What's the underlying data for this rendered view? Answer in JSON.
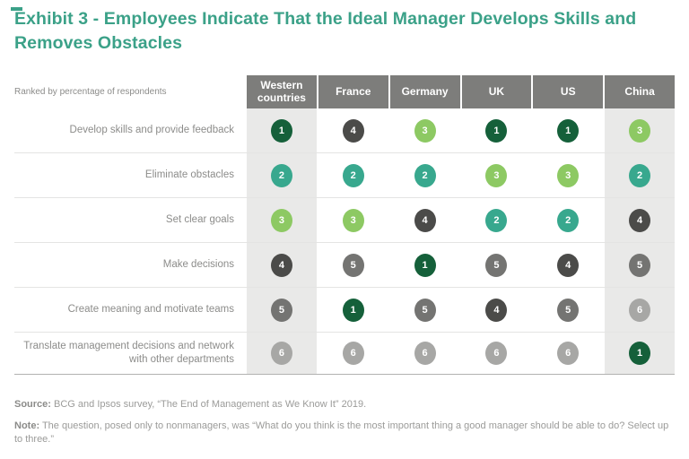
{
  "title": {
    "text": "Exhibit 3 - Employees Indicate That the Ideal Manager Develops Skills and Removes Obstacles",
    "color": "#3BA188"
  },
  "table": {
    "corner_label": "Ranked by percentage of respondents",
    "columns": [
      "Western countries",
      "France",
      "Germany",
      "UK",
      "US",
      "China"
    ],
    "shaded_columns": [
      0,
      5
    ],
    "rows": [
      {
        "label": "Develop skills and provide feedback",
        "ranks": [
          1,
          4,
          3,
          1,
          1,
          3
        ]
      },
      {
        "label": "Eliminate obstacles",
        "ranks": [
          2,
          2,
          2,
          3,
          3,
          2
        ]
      },
      {
        "label": "Set clear goals",
        "ranks": [
          3,
          3,
          4,
          2,
          2,
          4
        ]
      },
      {
        "label": "Make decisions",
        "ranks": [
          4,
          5,
          1,
          5,
          4,
          5
        ]
      },
      {
        "label": "Create meaning and motivate teams",
        "ranks": [
          5,
          1,
          5,
          4,
          5,
          6
        ]
      },
      {
        "label": "Translate management decisions and network with other departments",
        "ranks": [
          6,
          6,
          6,
          6,
          6,
          1
        ]
      }
    ],
    "rank_colors": {
      "1": "#15603A",
      "2": "#38A88E",
      "3": "#8DC963",
      "4": "#4B4B49",
      "5": "#747472",
      "6": "#A7A7A5"
    },
    "header_bg": "#7D7D7B",
    "shaded_column_bg": "#E9E9E8"
  },
  "footer": {
    "source_label": "Source:",
    "source_text": " BCG and Ipsos survey, “The End of Management as We Know It” 2019.",
    "note_label": "Note:",
    "note_text": " The question, posed only to nonmanagers, was “What do you think is the most important thing a good manager should be able to do? Select up to three.”"
  },
  "chart_data": {
    "type": "table",
    "title": "Exhibit 3 - Employees Indicate That the Ideal Manager Develops Skills and Removes Obstacles",
    "columns": [
      "Western countries",
      "France",
      "Germany",
      "UK",
      "US",
      "China"
    ],
    "rows": [
      "Develop skills and provide feedback",
      "Eliminate obstacles",
      "Set clear goals",
      "Make decisions",
      "Create meaning and motivate teams",
      "Translate management decisions and network with other departments"
    ],
    "values": [
      [
        1,
        4,
        3,
        1,
        1,
        3
      ],
      [
        2,
        2,
        2,
        3,
        3,
        2
      ],
      [
        3,
        3,
        4,
        2,
        2,
        4
      ],
      [
        4,
        5,
        1,
        5,
        4,
        5
      ],
      [
        5,
        1,
        5,
        4,
        5,
        6
      ],
      [
        6,
        6,
        6,
        6,
        6,
        1
      ]
    ],
    "value_label": "Ranked by percentage of respondents",
    "legend_position": "none",
    "color_by_rank": {
      "1": "#15603A",
      "2": "#38A88E",
      "3": "#8DC963",
      "4": "#4B4B49",
      "5": "#747472",
      "6": "#A7A7A5"
    }
  }
}
